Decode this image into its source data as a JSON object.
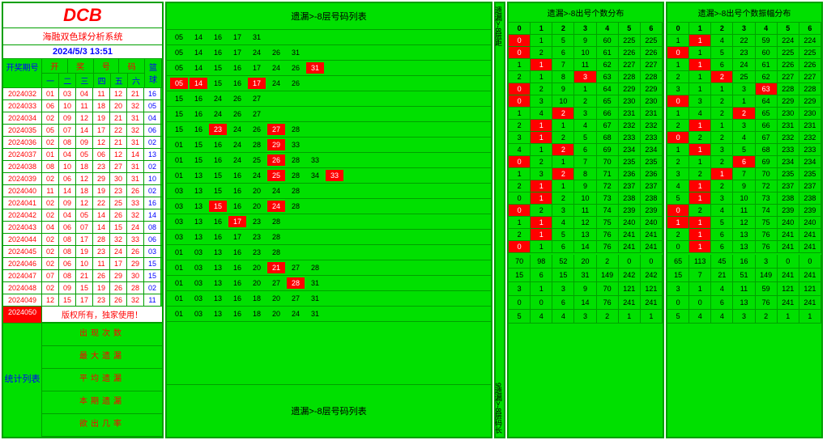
{
  "colors": {
    "bg": "#00e000",
    "border": "#00a000",
    "red": "#ff0000",
    "blue": "#0000ff",
    "white": "#ffffff"
  },
  "logo": "DCB",
  "system_name": "海融双色球分析系统",
  "datetime": "2024/5/3 13:51",
  "left_hdr": {
    "issue": "开奖期号",
    "top": [
      "开",
      "奖",
      "号",
      "码"
    ],
    "sub": [
      "一",
      "二",
      "三",
      "四",
      "五",
      "六"
    ],
    "blue": "篮球"
  },
  "issues": [
    {
      "i": "2024032",
      "n": [
        "01",
        "03",
        "04",
        "11",
        "12",
        "21"
      ],
      "b": "16"
    },
    {
      "i": "2024033",
      "n": [
        "06",
        "10",
        "11",
        "18",
        "20",
        "32"
      ],
      "b": "05"
    },
    {
      "i": "2024034",
      "n": [
        "02",
        "09",
        "12",
        "19",
        "21",
        "31"
      ],
      "b": "04"
    },
    {
      "i": "2024035",
      "n": [
        "05",
        "07",
        "14",
        "17",
        "22",
        "32"
      ],
      "b": "06"
    },
    {
      "i": "2024036",
      "n": [
        "02",
        "08",
        "09",
        "12",
        "21",
        "31"
      ],
      "b": "02"
    },
    {
      "i": "2024037",
      "n": [
        "01",
        "04",
        "05",
        "06",
        "12",
        "14"
      ],
      "b": "13"
    },
    {
      "i": "2024038",
      "n": [
        "08",
        "10",
        "18",
        "23",
        "27",
        "31"
      ],
      "b": "02"
    },
    {
      "i": "2024039",
      "n": [
        "02",
        "06",
        "12",
        "29",
        "30",
        "31"
      ],
      "b": "10"
    },
    {
      "i": "2024040",
      "n": [
        "11",
        "14",
        "18",
        "19",
        "23",
        "26"
      ],
      "b": "02"
    },
    {
      "i": "2024041",
      "n": [
        "02",
        "09",
        "12",
        "22",
        "25",
        "33"
      ],
      "b": "16"
    },
    {
      "i": "2024042",
      "n": [
        "02",
        "04",
        "05",
        "14",
        "26",
        "32"
      ],
      "b": "14"
    },
    {
      "i": "2024043",
      "n": [
        "04",
        "06",
        "07",
        "14",
        "15",
        "24"
      ],
      "b": "08"
    },
    {
      "i": "2024044",
      "n": [
        "02",
        "08",
        "17",
        "28",
        "32",
        "33"
      ],
      "b": "06"
    },
    {
      "i": "2024045",
      "n": [
        "02",
        "08",
        "19",
        "23",
        "24",
        "26"
      ],
      "b": "03"
    },
    {
      "i": "2024046",
      "n": [
        "02",
        "06",
        "10",
        "11",
        "17",
        "29"
      ],
      "b": "15"
    },
    {
      "i": "2024047",
      "n": [
        "07",
        "08",
        "21",
        "26",
        "29",
        "30"
      ],
      "b": "15"
    },
    {
      "i": "2024048",
      "n": [
        "02",
        "09",
        "15",
        "19",
        "26",
        "28"
      ],
      "b": "02"
    },
    {
      "i": "2024049",
      "n": [
        "12",
        "15",
        "17",
        "23",
        "26",
        "32"
      ],
      "b": "11"
    }
  ],
  "current": "2024050",
  "copyright": "版权所有，独家使用！",
  "stat_lbl": "统计列表",
  "stat_rows": [
    "出现次数",
    "最大遗漏",
    "平均遗漏",
    "本期遗漏",
    "欲出几率"
  ],
  "mid_title": "遗漏>-8层号码列表",
  "mid_bottom": "遗漏>-8层号码列表",
  "mid_rows": [
    {
      "n": [
        "05",
        "14",
        "16",
        "17",
        "31"
      ],
      "hl": []
    },
    {
      "n": [
        "05",
        "14",
        "16",
        "17",
        "24",
        "26",
        "31"
      ],
      "hl": []
    },
    {
      "n": [
        "05",
        "14",
        "15",
        "16",
        "17",
        "24",
        "26",
        "31"
      ],
      "hl": [
        7
      ]
    },
    {
      "n": [
        "05",
        "14",
        "15",
        "16",
        "17",
        "24",
        "26"
      ],
      "hl": [
        0,
        1,
        4
      ]
    },
    {
      "n": [
        "15",
        "16",
        "24",
        "26",
        "27"
      ],
      "hl": []
    },
    {
      "n": [
        "15",
        "16",
        "24",
        "26",
        "27"
      ],
      "hl": []
    },
    {
      "n": [
        "15",
        "16",
        "23",
        "24",
        "26",
        "27",
        "28"
      ],
      "hl": [
        2,
        5
      ]
    },
    {
      "n": [
        "01",
        "15",
        "16",
        "24",
        "28",
        "29",
        "33"
      ],
      "hl": [
        5
      ]
    },
    {
      "n": [
        "01",
        "15",
        "16",
        "24",
        "25",
        "26",
        "28",
        "33"
      ],
      "hl": [
        5
      ]
    },
    {
      "n": [
        "01",
        "13",
        "15",
        "16",
        "24",
        "25",
        "28",
        "34",
        "33"
      ],
      "hl": [
        5,
        8
      ]
    },
    {
      "n": [
        "03",
        "13",
        "15",
        "16",
        "20",
        "24",
        "28"
      ],
      "hl": []
    },
    {
      "n": [
        "03",
        "13",
        "15",
        "16",
        "20",
        "24",
        "28"
      ],
      "hl": [
        2,
        5
      ]
    },
    {
      "n": [
        "03",
        "13",
        "16",
        "17",
        "23",
        "28"
      ],
      "hl": [
        3
      ]
    },
    {
      "n": [
        "03",
        "13",
        "16",
        "17",
        "23",
        "28"
      ],
      "hl": []
    },
    {
      "n": [
        "01",
        "03",
        "13",
        "16",
        "23",
        "28"
      ],
      "hl": []
    },
    {
      "n": [
        "01",
        "03",
        "13",
        "16",
        "20",
        "21",
        "27",
        "28"
      ],
      "hl": [
        5
      ]
    },
    {
      "n": [
        "01",
        "03",
        "13",
        "16",
        "20",
        "27",
        "28",
        "31"
      ],
      "hl": [
        6
      ]
    },
    {
      "n": [
        "01",
        "03",
        "13",
        "16",
        "18",
        "20",
        "27",
        "31"
      ],
      "hl": []
    },
    {
      "n": [
        "01",
        "03",
        "13",
        "16",
        "18",
        "20",
        "24",
        "31"
      ],
      "hl": []
    }
  ],
  "vcol_top": "遗漏>-8层距",
  "vcol_bot": "9遗漏>-8层码长",
  "r1_title": "遗漏>-8出号个数分布",
  "r2_title": "遗漏>-8出号个数振幅分布",
  "r_hdr": [
    "0",
    "1",
    "2",
    "3",
    "4",
    "5",
    "6"
  ],
  "side_col": [
    "5",
    "7",
    "8",
    "7",
    "5",
    "5",
    "7",
    "7",
    "7",
    "9",
    "7",
    "7",
    "6",
    "6",
    "6",
    "8",
    "8",
    "8"
  ],
  "r1": [
    {
      "v": [
        "0",
        "1",
        "5",
        "9",
        "60",
        "225",
        "225"
      ],
      "hl": [
        0
      ]
    },
    {
      "v": [
        "0",
        "2",
        "6",
        "10",
        "61",
        "226",
        "226"
      ],
      "hl": [
        0
      ]
    },
    {
      "v": [
        "1",
        "1",
        "7",
        "11",
        "62",
        "227",
        "227"
      ],
      "hl": [
        1
      ]
    },
    {
      "v": [
        "2",
        "1",
        "8",
        "3",
        "63",
        "228",
        "228"
      ],
      "hl": [
        3
      ]
    },
    {
      "v": [
        "0",
        "2",
        "9",
        "1",
        "64",
        "229",
        "229"
      ],
      "hl": [
        0
      ]
    },
    {
      "v": [
        "0",
        "3",
        "10",
        "2",
        "65",
        "230",
        "230"
      ],
      "hl": [
        0
      ]
    },
    {
      "v": [
        "1",
        "4",
        "2",
        "3",
        "66",
        "231",
        "231"
      ],
      "hl": [
        2
      ]
    },
    {
      "v": [
        "2",
        "1",
        "1",
        "4",
        "67",
        "232",
        "232"
      ],
      "hl": [
        1
      ]
    },
    {
      "v": [
        "3",
        "1",
        "2",
        "5",
        "68",
        "233",
        "233"
      ],
      "hl": [
        1
      ]
    },
    {
      "v": [
        "4",
        "1",
        "2",
        "6",
        "69",
        "234",
        "234"
      ],
      "hl": [
        2
      ]
    },
    {
      "v": [
        "0",
        "2",
        "1",
        "7",
        "70",
        "235",
        "235"
      ],
      "hl": [
        0
      ]
    },
    {
      "v": [
        "1",
        "3",
        "2",
        "8",
        "71",
        "236",
        "236"
      ],
      "hl": [
        2
      ]
    },
    {
      "v": [
        "2",
        "1",
        "1",
        "9",
        "72",
        "237",
        "237"
      ],
      "hl": [
        1
      ]
    },
    {
      "v": [
        "0",
        "1",
        "2",
        "10",
        "73",
        "238",
        "238"
      ],
      "hl": [
        1
      ]
    },
    {
      "v": [
        "0",
        "2",
        "3",
        "11",
        "74",
        "239",
        "239"
      ],
      "hl": [
        0
      ]
    },
    {
      "v": [
        "1",
        "1",
        "4",
        "12",
        "75",
        "240",
        "240"
      ],
      "hl": [
        1
      ]
    },
    {
      "v": [
        "2",
        "1",
        "5",
        "13",
        "76",
        "241",
        "241"
      ],
      "hl": [
        1
      ]
    },
    {
      "v": [
        "0",
        "1",
        "6",
        "14",
        "76",
        "241",
        "241"
      ],
      "hl": [
        0
      ]
    }
  ],
  "r2": [
    {
      "v": [
        "1",
        "1",
        "4",
        "22",
        "59",
        "224",
        "224"
      ],
      "hl": [
        1
      ]
    },
    {
      "v": [
        "0",
        "1",
        "5",
        "23",
        "60",
        "225",
        "225"
      ],
      "hl": [
        0
      ]
    },
    {
      "v": [
        "1",
        "1",
        "6",
        "24",
        "61",
        "226",
        "226"
      ],
      "hl": [
        1
      ]
    },
    {
      "v": [
        "2",
        "1",
        "2",
        "25",
        "62",
        "227",
        "227"
      ],
      "hl": [
        2
      ]
    },
    {
      "v": [
        "3",
        "1",
        "1",
        "3",
        "63",
        "228",
        "228"
      ],
      "hl": [
        4
      ]
    },
    {
      "v": [
        "0",
        "3",
        "2",
        "1",
        "64",
        "229",
        "229"
      ],
      "hl": [
        0
      ]
    },
    {
      "v": [
        "1",
        "4",
        "2",
        "2",
        "65",
        "230",
        "230"
      ],
      "hl": [
        3
      ]
    },
    {
      "v": [
        "2",
        "1",
        "1",
        "3",
        "66",
        "231",
        "231"
      ],
      "hl": [
        1
      ]
    },
    {
      "v": [
        "0",
        "2",
        "2",
        "4",
        "67",
        "232",
        "232"
      ],
      "hl": [
        0
      ]
    },
    {
      "v": [
        "1",
        "1",
        "3",
        "5",
        "68",
        "233",
        "233"
      ],
      "hl": [
        1
      ]
    },
    {
      "v": [
        "2",
        "1",
        "2",
        "6",
        "69",
        "234",
        "234"
      ],
      "hl": [
        3
      ]
    },
    {
      "v": [
        "3",
        "2",
        "1",
        "7",
        "70",
        "235",
        "235"
      ],
      "hl": [
        2
      ]
    },
    {
      "v": [
        "4",
        "1",
        "2",
        "9",
        "72",
        "237",
        "237"
      ],
      "hl": [
        1
      ]
    },
    {
      "v": [
        "5",
        "1",
        "3",
        "10",
        "73",
        "238",
        "238"
      ],
      "hl": [
        1
      ]
    },
    {
      "v": [
        "0",
        "2",
        "4",
        "11",
        "74",
        "239",
        "239"
      ],
      "hl": [
        0
      ]
    },
    {
      "v": [
        "1",
        "1",
        "5",
        "12",
        "75",
        "240",
        "240"
      ],
      "hl": [
        0,
        1
      ]
    },
    {
      "v": [
        "2",
        "1",
        "6",
        "13",
        "76",
        "241",
        "241"
      ],
      "hl": [
        1
      ]
    },
    {
      "v": [
        "0",
        "1",
        "6",
        "13",
        "76",
        "241",
        "241"
      ],
      "hl": [
        1
      ]
    }
  ],
  "r1_stat": [
    [
      "70",
      "98",
      "52",
      "20",
      "2",
      "0",
      "0"
    ],
    [
      "15",
      "6",
      "15",
      "31",
      "149",
      "242",
      "242"
    ],
    [
      "3",
      "1",
      "3",
      "9",
      "70",
      "121",
      "121"
    ],
    [
      "0",
      "0",
      "6",
      "14",
      "76",
      "241",
      "241"
    ],
    [
      "5",
      "4",
      "4",
      "3",
      "2",
      "1",
      "1"
    ]
  ],
  "r2_stat": [
    [
      "65",
      "113",
      "45",
      "16",
      "3",
      "0",
      "0"
    ],
    [
      "15",
      "7",
      "21",
      "51",
      "149",
      "241",
      "241"
    ],
    [
      "3",
      "1",
      "4",
      "11",
      "59",
      "121",
      "121"
    ],
    [
      "0",
      "0",
      "6",
      "13",
      "76",
      "241",
      "241"
    ],
    [
      "5",
      "4",
      "4",
      "3",
      "2",
      "1",
      "1"
    ]
  ]
}
